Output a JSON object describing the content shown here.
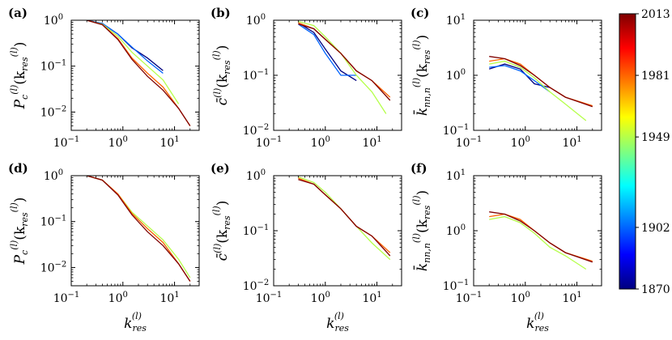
{
  "colorbar": {
    "ticks": [
      "2013",
      "1981",
      "1949",
      "1902",
      "1870"
    ],
    "min": 1870,
    "max": 2013,
    "colors": [
      "#00007f",
      "#0000ff",
      "#007fff",
      "#00ffff",
      "#7fff7f",
      "#ffff00",
      "#ff7f00",
      "#ff0000",
      "#7f0000"
    ]
  },
  "chart_data": [
    {
      "panel": "(a)",
      "type": "line",
      "scale": "log-log",
      "ylabel_main": "P",
      "ylabel_sub": "c",
      "ylabel_sup": "(l)",
      "ylabel_arg": "(k",
      "ylabel_argsub": "res",
      "ylabel_argsup": "(l)",
      "ylabel_close": ")",
      "xlim": [
        0.1,
        30
      ],
      "ylim": [
        0.004,
        1.0
      ],
      "yticks": [
        "10",
        "10",
        "10"
      ],
      "yticks_exp": [
        "0",
        "−1",
        "−2"
      ],
      "xticks": [
        "10",
        "10",
        "10"
      ],
      "xticks_exp": [
        "−1",
        "0",
        "1"
      ],
      "series": [
        {
          "year": 1870,
          "x": [
            0.2,
            0.4,
            0.8,
            1.5,
            3,
            6
          ],
          "y": [
            1.0,
            0.85,
            0.5,
            0.25,
            0.15,
            0.08
          ]
        },
        {
          "year": 1902,
          "x": [
            0.2,
            0.4,
            0.8,
            1.5,
            3,
            6
          ],
          "y": [
            1.0,
            0.85,
            0.5,
            0.26,
            0.13,
            0.07
          ]
        },
        {
          "year": 1949,
          "x": [
            0.2,
            0.4,
            0.8,
            1.5,
            3,
            6,
            12
          ],
          "y": [
            1.0,
            0.82,
            0.45,
            0.2,
            0.1,
            0.05,
            0.015
          ]
        },
        {
          "year": 1981,
          "x": [
            0.2,
            0.4,
            0.8,
            1.5,
            3,
            6,
            12,
            20
          ],
          "y": [
            1.0,
            0.8,
            0.4,
            0.15,
            0.07,
            0.035,
            0.012,
            0.005
          ]
        },
        {
          "year": 2013,
          "x": [
            0.2,
            0.4,
            0.8,
            1.5,
            3,
            6,
            12,
            20
          ],
          "y": [
            1.0,
            0.8,
            0.38,
            0.14,
            0.06,
            0.03,
            0.012,
            0.005
          ]
        }
      ]
    },
    {
      "panel": "(b)",
      "type": "line",
      "scale": "log-log",
      "ylabel_main": "c̄",
      "ylabel_sub": "",
      "ylabel_sup": "(l)",
      "ylabel_arg": "(k",
      "ylabel_argsub": "res",
      "ylabel_argsup": "(l)",
      "ylabel_close": ")",
      "xlim": [
        0.1,
        30
      ],
      "ylim": [
        0.01,
        1.0
      ],
      "yticks": [
        "10",
        "10",
        "10"
      ],
      "yticks_exp": [
        "0",
        "−1",
        "−2"
      ],
      "xticks": [
        "10",
        "10",
        "10"
      ],
      "xticks_exp": [
        "−1",
        "0",
        "1"
      ],
      "series": [
        {
          "year": 1870,
          "x": [
            0.3,
            0.6,
            1.0,
            2,
            4
          ],
          "y": [
            0.9,
            0.6,
            0.3,
            0.12,
            0.08
          ]
        },
        {
          "year": 1902,
          "x": [
            0.3,
            0.6,
            1.0,
            2,
            4
          ],
          "y": [
            0.85,
            0.55,
            0.25,
            0.1,
            0.1
          ]
        },
        {
          "year": 1949,
          "x": [
            0.3,
            0.6,
            1.0,
            2,
            4,
            8,
            15
          ],
          "y": [
            0.95,
            0.8,
            0.5,
            0.25,
            0.1,
            0.05,
            0.02
          ]
        },
        {
          "year": 1981,
          "x": [
            0.3,
            0.6,
            1.0,
            2,
            4,
            8,
            18
          ],
          "y": [
            0.9,
            0.7,
            0.45,
            0.25,
            0.12,
            0.08,
            0.04
          ]
        },
        {
          "year": 2013,
          "x": [
            0.3,
            0.6,
            1.0,
            2,
            4,
            8,
            18
          ],
          "y": [
            0.85,
            0.7,
            0.45,
            0.25,
            0.12,
            0.08,
            0.035
          ]
        }
      ]
    },
    {
      "panel": "(c)",
      "type": "line",
      "scale": "log-log",
      "ylabel_main": "k̄",
      "ylabel_sub": "nn,n",
      "ylabel_sup": "(l)",
      "ylabel_arg": "(k",
      "ylabel_argsub": "res",
      "ylabel_argsup": "(l)",
      "ylabel_close": ")",
      "xlim": [
        0.1,
        30
      ],
      "ylim": [
        0.1,
        10
      ],
      "yticks": [
        "10",
        "10",
        "10"
      ],
      "yticks_exp": [
        "1",
        "0",
        "−1"
      ],
      "xticks": [
        "10",
        "10",
        "10"
      ],
      "xticks_exp": [
        "−1",
        "0",
        "1"
      ],
      "series": [
        {
          "year": 1870,
          "x": [
            0.2,
            0.4,
            0.8,
            1.5,
            3
          ],
          "y": [
            1.3,
            1.6,
            1.3,
            0.7,
            0.6
          ]
        },
        {
          "year": 1902,
          "x": [
            0.2,
            0.4,
            0.8,
            1.5,
            3
          ],
          "y": [
            1.4,
            1.5,
            1.2,
            0.8,
            0.5
          ]
        },
        {
          "year": 1949,
          "x": [
            0.2,
            0.4,
            0.8,
            1.5,
            3,
            6,
            15
          ],
          "y": [
            1.6,
            1.8,
            1.4,
            0.9,
            0.5,
            0.3,
            0.15
          ]
        },
        {
          "year": 1981,
          "x": [
            0.2,
            0.4,
            0.8,
            1.5,
            3,
            6,
            20
          ],
          "y": [
            1.8,
            2.0,
            1.6,
            1.0,
            0.6,
            0.4,
            0.28
          ]
        },
        {
          "year": 2013,
          "x": [
            0.2,
            0.4,
            0.8,
            1.5,
            3,
            6,
            20
          ],
          "y": [
            2.2,
            2.0,
            1.5,
            1.0,
            0.6,
            0.4,
            0.27
          ]
        }
      ]
    },
    {
      "panel": "(d)",
      "type": "line",
      "scale": "log-log",
      "ylabel_main": "P",
      "ylabel_sub": "c",
      "ylabel_sup": "(l)",
      "ylabel_arg": "(k",
      "ylabel_argsub": "res",
      "ylabel_argsup": "(l)",
      "ylabel_close": ")",
      "xlim": [
        0.1,
        30
      ],
      "ylim": [
        0.004,
        1.0
      ],
      "yticks": [
        "10",
        "10",
        "10"
      ],
      "yticks_exp": [
        "0",
        "−1",
        "−2"
      ],
      "xticks": [
        "10",
        "10",
        "10"
      ],
      "xticks_exp": [
        "−1",
        "0",
        "1"
      ],
      "series": [
        {
          "year": 1949,
          "x": [
            0.2,
            0.4,
            0.8,
            1.5,
            3,
            6,
            12,
            20
          ],
          "y": [
            1.0,
            0.8,
            0.4,
            0.16,
            0.08,
            0.04,
            0.015,
            0.006
          ]
        },
        {
          "year": 1981,
          "x": [
            0.2,
            0.4,
            0.8,
            1.5,
            3,
            6,
            12,
            20
          ],
          "y": [
            1.0,
            0.8,
            0.4,
            0.15,
            0.07,
            0.035,
            0.012,
            0.005
          ]
        },
        {
          "year": 2013,
          "x": [
            0.2,
            0.4,
            0.8,
            1.5,
            3,
            6,
            12,
            20
          ],
          "y": [
            1.0,
            0.8,
            0.38,
            0.14,
            0.06,
            0.03,
            0.012,
            0.005
          ]
        }
      ]
    },
    {
      "panel": "(e)",
      "type": "line",
      "scale": "log-log",
      "ylabel_main": "c̄",
      "ylabel_sub": "",
      "ylabel_sup": "(l)",
      "ylabel_arg": "(k",
      "ylabel_argsub": "res",
      "ylabel_argsup": "(l)",
      "ylabel_close": ")",
      "xlim": [
        0.1,
        30
      ],
      "ylim": [
        0.01,
        1.0
      ],
      "yticks": [
        "10",
        "10",
        "10"
      ],
      "yticks_exp": [
        "0",
        "−1",
        "−2"
      ],
      "xticks": [
        "10",
        "10",
        "10"
      ],
      "xticks_exp": [
        "−1",
        "0",
        "1"
      ],
      "series": [
        {
          "year": 1949,
          "x": [
            0.3,
            0.6,
            1.0,
            2,
            4,
            8,
            18
          ],
          "y": [
            0.95,
            0.75,
            0.5,
            0.25,
            0.12,
            0.06,
            0.03
          ]
        },
        {
          "year": 1981,
          "x": [
            0.3,
            0.6,
            1.0,
            2,
            4,
            8,
            18
          ],
          "y": [
            0.9,
            0.7,
            0.45,
            0.25,
            0.12,
            0.08,
            0.04
          ]
        },
        {
          "year": 2013,
          "x": [
            0.3,
            0.6,
            1.0,
            2,
            4,
            8,
            18
          ],
          "y": [
            0.85,
            0.7,
            0.45,
            0.25,
            0.12,
            0.08,
            0.035
          ]
        }
      ]
    },
    {
      "panel": "(f)",
      "type": "line",
      "scale": "log-log",
      "ylabel_main": "k̄",
      "ylabel_sub": "nn,n",
      "ylabel_sup": "(l)",
      "ylabel_arg": "(k",
      "ylabel_argsub": "res",
      "ylabel_argsup": "(l)",
      "ylabel_close": ")",
      "xlim": [
        0.1,
        30
      ],
      "ylim": [
        0.1,
        10
      ],
      "yticks": [
        "10",
        "10",
        "10"
      ],
      "yticks_exp": [
        "1",
        "0",
        "−1"
      ],
      "xticks": [
        "10",
        "10",
        "10"
      ],
      "xticks_exp": [
        "−1",
        "0",
        "1"
      ],
      "series": [
        {
          "year": 1949,
          "x": [
            0.2,
            0.4,
            0.8,
            1.5,
            3,
            6,
            15
          ],
          "y": [
            1.6,
            1.8,
            1.4,
            0.9,
            0.5,
            0.35,
            0.2
          ]
        },
        {
          "year": 1981,
          "x": [
            0.2,
            0.4,
            0.8,
            1.5,
            3,
            6,
            20
          ],
          "y": [
            1.8,
            2.0,
            1.6,
            1.0,
            0.6,
            0.4,
            0.28
          ]
        },
        {
          "year": 2013,
          "x": [
            0.2,
            0.4,
            0.8,
            1.5,
            3,
            6,
            20
          ],
          "y": [
            2.2,
            2.0,
            1.5,
            1.0,
            0.6,
            0.4,
            0.27
          ]
        }
      ]
    }
  ],
  "xlabel_main": "k",
  "xlabel_sub": "res",
  "xlabel_sup": "(l)"
}
